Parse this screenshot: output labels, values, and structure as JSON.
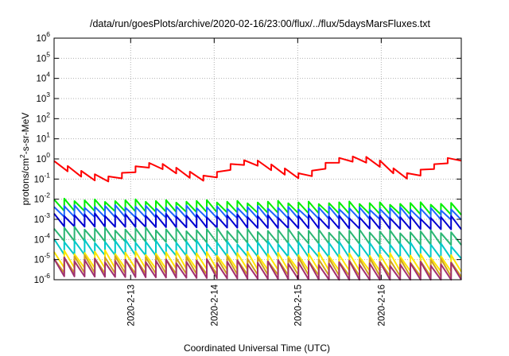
{
  "chart_data": {
    "type": "line",
    "title": "/data/run/goesPlots/archive/2020-02-16/23:00/flux/../flux/5daysMarsFluxes.txt",
    "xlabel": "Coordinated Universal Time (UTC)",
    "ylabel_parts": {
      "a": "protons/cm",
      "sup": "2",
      "b": "-s-sr-MeV"
    },
    "y_scale": "log",
    "ylim": [
      1e-06,
      1000000.0
    ],
    "y_ticks": [
      {
        "base": "10",
        "exp": "6",
        "v": 6
      },
      {
        "base": "10",
        "exp": "5",
        "v": 5
      },
      {
        "base": "10",
        "exp": "4",
        "v": 4
      },
      {
        "base": "10",
        "exp": "3",
        "v": 3
      },
      {
        "base": "10",
        "exp": "2",
        "v": 2
      },
      {
        "base": "10",
        "exp": "1",
        "v": 1
      },
      {
        "base": "10",
        "exp": "0",
        "v": 0
      },
      {
        "base": "10",
        "exp": "-1",
        "v": -1
      },
      {
        "base": "10",
        "exp": "-2",
        "v": -2
      },
      {
        "base": "10",
        "exp": "-3",
        "v": -3
      },
      {
        "base": "10",
        "exp": "-4",
        "v": -4
      },
      {
        "base": "10",
        "exp": "-5",
        "v": -5
      },
      {
        "base": "10",
        "exp": "-6",
        "v": -6
      }
    ],
    "x_range_days": [
      "2020-02-12 02:00",
      "2020-02-16 23:00"
    ],
    "x_ticks": [
      {
        "label": "2020-2-13",
        "date": "2020-02-13"
      },
      {
        "label": "2020-2-14",
        "date": "2020-02-14"
      },
      {
        "label": "2020-2-15",
        "date": "2020-02-15"
      },
      {
        "label": "2020-2-16",
        "date": "2020-02-16"
      }
    ],
    "grid": true,
    "legend": "none",
    "series": [
      {
        "color": "#ff0000",
        "trend": [
          -0.2,
          -0.45,
          -0.7,
          -0.9,
          -1.0,
          -0.95,
          -0.7,
          -0.4,
          -0.25,
          -0.4,
          -0.6,
          -0.8,
          -0.95,
          -0.85,
          -0.5,
          -0.2,
          -0.1,
          -0.3,
          -0.5,
          -0.7,
          -0.85,
          -0.7,
          -0.35,
          -0.05,
          0.0,
          0.0,
          -0.15,
          -0.4,
          -0.75,
          -0.9,
          -0.6,
          -0.3,
          -0.05,
          0.05
        ],
        "teeth": 30,
        "amp": 0.28
      },
      {
        "color": "#00ee00",
        "trend": [
          -2.3,
          -2.5
        ],
        "teeth": 40,
        "amp": 0.55
      },
      {
        "color": "#1e64ff",
        "trend": [
          -2.6,
          -2.75
        ],
        "teeth": 40,
        "amp": 0.55
      },
      {
        "color": "#0000d0",
        "trend": [
          -3.05,
          -3.2
        ],
        "teeth": 40,
        "amp": 0.6
      },
      {
        "color": "#2bb673",
        "trend": [
          -3.75,
          -3.95
        ],
        "teeth": 40,
        "amp": 0.65
      },
      {
        "color": "#00c8c8",
        "trend": [
          -4.4,
          -4.6
        ],
        "teeth": 40,
        "amp": 0.7
      },
      {
        "color": "#ffe600",
        "trend": [
          -5.0,
          -5.2
        ],
        "teeth": 40,
        "amp": 0.8
      },
      {
        "color": "#d0a020",
        "trend": [
          -5.25,
          -5.45
        ],
        "teeth": 40,
        "amp": 0.8
      },
      {
        "color": "#a03070",
        "trend": [
          -5.4,
          -5.65
        ],
        "teeth": 40,
        "amp": 0.85
      }
    ]
  }
}
